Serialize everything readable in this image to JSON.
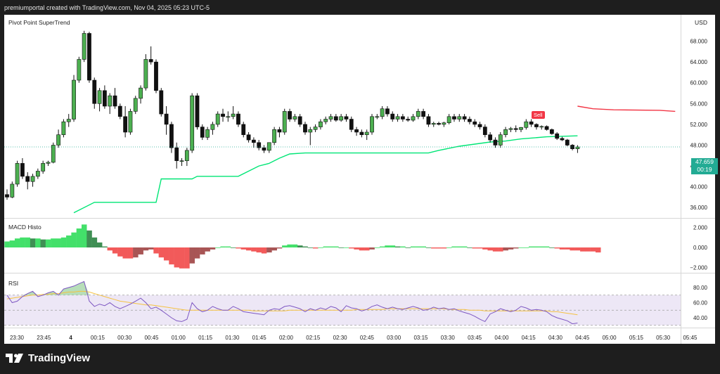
{
  "header": {
    "text": "premiumportal created with TradingView.com, Nov 04, 2025 05:23 UTC-5"
  },
  "brand": {
    "name": "TradingView"
  },
  "colors": {
    "up": "#4caf50",
    "down": "#111111",
    "supertrend_up": "#00e676",
    "supertrend_down": "#f23645",
    "hist_pos": "#4caf50",
    "hist_neg": "#f23645",
    "rsi_line": "#7e57c2",
    "rsi_ma": "#f5c242",
    "rsi_band": "#ede7f6",
    "badge": "#22ab94"
  },
  "price_badge": {
    "price": "47.659",
    "countdown": "00:19"
  },
  "sell_label": "Sell",
  "chart_data": [
    {
      "type": "candlestick",
      "title": "Pivot Point SuperTrend",
      "currency": "USD",
      "x_ticks": [
        "23:30",
        "23:45",
        "4",
        "00:15",
        "00:30",
        "00:45",
        "01:00",
        "01:15",
        "01:30",
        "01:45",
        "02:00",
        "02:15",
        "02:30",
        "02:45",
        "03:00",
        "03:15",
        "03:30",
        "03:45",
        "04:00",
        "04:15",
        "04:30",
        "04:45",
        "05:00",
        "05:15",
        "05:30",
        "05:45"
      ],
      "y_ticks": [
        "68.000",
        "64.000",
        "60.000",
        "56.000",
        "52.000",
        "48.000",
        "44.000",
        "40.000",
        "36.000"
      ],
      "ylim": [
        34,
        72
      ],
      "candles": [
        [
          38.5,
          39.5,
          37.5,
          38.0
        ],
        [
          38.0,
          41.0,
          37.8,
          40.5
        ],
        [
          40.5,
          45.0,
          40.0,
          44.5
        ],
        [
          44.5,
          45.5,
          41.5,
          42.0
        ],
        [
          42.0,
          42.8,
          39.5,
          41.0
        ],
        [
          41.0,
          42.5,
          40.0,
          42.0
        ],
        [
          42.0,
          43.5,
          41.5,
          43.0
        ],
        [
          43.0,
          45.0,
          42.5,
          44.5
        ],
        [
          44.5,
          45.0,
          44.0,
          44.7
        ],
        [
          44.7,
          48.5,
          44.5,
          48.0
        ],
        [
          48.0,
          51.0,
          47.5,
          50.0
        ],
        [
          50.0,
          53.0,
          49.5,
          52.5
        ],
        [
          52.5,
          54.0,
          51.5,
          53.0
        ],
        [
          53.0,
          61.5,
          52.5,
          60.5
        ],
        [
          60.5,
          65.0,
          60.0,
          64.5
        ],
        [
          64.5,
          70.0,
          64.0,
          69.5
        ],
        [
          69.5,
          69.8,
          60.0,
          60.5
        ],
        [
          60.5,
          61.0,
          55.0,
          56.0
        ],
        [
          56.0,
          59.0,
          54.5,
          58.5
        ],
        [
          58.5,
          59.5,
          55.0,
          55.5
        ],
        [
          55.5,
          58.0,
          54.0,
          57.5
        ],
        [
          57.5,
          59.0,
          55.0,
          55.5
        ],
        [
          55.5,
          56.0,
          53.0,
          53.5
        ],
        [
          53.5,
          55.5,
          49.5,
          50.5
        ],
        [
          50.5,
          55.0,
          50.0,
          54.5
        ],
        [
          54.5,
          57.5,
          54.0,
          57.0
        ],
        [
          57.0,
          59.5,
          56.0,
          59.0
        ],
        [
          59.0,
          65.5,
          58.5,
          64.5
        ],
        [
          64.5,
          67.0,
          63.5,
          64.0
        ],
        [
          64.0,
          64.5,
          58.0,
          58.5
        ],
        [
          58.5,
          59.0,
          53.5,
          54.0
        ],
        [
          54.0,
          55.5,
          50.0,
          52.0
        ],
        [
          52.0,
          52.5,
          46.5,
          47.5
        ],
        [
          47.5,
          48.5,
          43.5,
          45.0
        ],
        [
          45.0,
          45.5,
          44.0,
          45.0
        ],
        [
          45.0,
          47.5,
          44.0,
          47.0
        ],
        [
          47.0,
          58.0,
          46.5,
          57.5
        ],
        [
          57.5,
          58.0,
          51.0,
          51.5
        ],
        [
          51.5,
          52.0,
          49.0,
          49.5
        ],
        [
          49.5,
          51.5,
          49.0,
          51.0
        ],
        [
          51.0,
          52.5,
          50.0,
          52.0
        ],
        [
          52.0,
          54.5,
          51.5,
          54.0
        ],
        [
          54.0,
          55.0,
          52.5,
          53.5
        ],
        [
          53.5,
          54.5,
          52.5,
          53.5
        ],
        [
          53.5,
          55.5,
          53.0,
          54.0
        ],
        [
          54.0,
          54.5,
          51.5,
          52.0
        ],
        [
          52.0,
          52.5,
          49.5,
          50.0
        ],
        [
          50.0,
          50.5,
          48.5,
          49.0
        ],
        [
          49.0,
          49.5,
          47.5,
          48.5
        ],
        [
          48.5,
          49.0,
          47.0,
          47.5
        ],
        [
          47.5,
          48.0,
          46.5,
          47.0
        ],
        [
          47.0,
          48.5,
          46.5,
          48.5
        ],
        [
          48.5,
          51.5,
          48.0,
          51.0
        ],
        [
          51.0,
          51.5,
          49.5,
          50.5
        ],
        [
          50.5,
          55.0,
          50.0,
          54.5
        ],
        [
          54.5,
          55.0,
          52.5,
          53.0
        ],
        [
          53.0,
          54.0,
          52.5,
          53.5
        ],
        [
          53.5,
          54.0,
          51.5,
          52.0
        ],
        [
          52.0,
          52.5,
          50.0,
          50.5
        ],
        [
          50.5,
          51.5,
          48.0,
          51.0
        ],
        [
          51.0,
          52.0,
          50.5,
          51.5
        ],
        [
          51.5,
          53.0,
          51.0,
          52.5
        ],
        [
          52.5,
          53.5,
          52.0,
          53.0
        ],
        [
          53.0,
          54.0,
          52.5,
          53.5
        ],
        [
          53.5,
          54.0,
          52.5,
          52.8
        ],
        [
          52.8,
          54.0,
          52.5,
          53.5
        ],
        [
          53.5,
          54.0,
          52.5,
          53.0
        ],
        [
          53.0,
          53.5,
          50.5,
          51.0
        ],
        [
          51.0,
          51.5,
          49.8,
          50.5
        ],
        [
          50.5,
          51.0,
          49.5,
          50.0
        ],
        [
          50.0,
          51.0,
          49.0,
          50.5
        ],
        [
          50.5,
          54.0,
          50.0,
          53.5
        ],
        [
          53.5,
          54.0,
          53.0,
          53.5
        ],
        [
          53.5,
          55.5,
          53.0,
          55.0
        ],
        [
          55.0,
          55.5,
          53.5,
          54.0
        ],
        [
          54.0,
          54.5,
          52.5,
          53.0
        ],
        [
          53.0,
          54.0,
          52.5,
          53.5
        ],
        [
          53.5,
          54.0,
          52.5,
          53.0
        ],
        [
          53.0,
          53.5,
          52.5,
          52.8
        ],
        [
          52.8,
          54.0,
          52.5,
          53.5
        ],
        [
          53.5,
          55.0,
          53.0,
          54.5
        ],
        [
          54.5,
          55.0,
          53.0,
          53.5
        ],
        [
          53.5,
          54.0,
          51.5,
          52.0
        ],
        [
          52.0,
          52.5,
          51.5,
          52.2
        ],
        [
          52.2,
          52.5,
          51.8,
          52.0
        ],
        [
          52.0,
          52.5,
          51.5,
          52.3
        ],
        [
          52.3,
          54.0,
          52.0,
          53.5
        ],
        [
          53.5,
          54.0,
          52.5,
          53.0
        ],
        [
          53.0,
          54.0,
          52.5,
          53.5
        ],
        [
          53.5,
          54.0,
          52.5,
          53.0
        ],
        [
          53.0,
          53.5,
          52.0,
          52.5
        ],
        [
          52.5,
          53.0,
          51.5,
          52.0
        ],
        [
          52.0,
          52.5,
          51.0,
          51.5
        ],
        [
          51.5,
          52.0,
          49.5,
          50.0
        ],
        [
          50.0,
          50.5,
          48.5,
          49.0
        ],
        [
          49.0,
          49.5,
          47.5,
          48.0
        ],
        [
          48.0,
          50.5,
          47.5,
          50.0
        ],
        [
          50.0,
          51.5,
          49.5,
          51.0
        ],
        [
          51.0,
          51.5,
          50.5,
          51.2
        ],
        [
          51.2,
          51.8,
          50.5,
          51.0
        ],
        [
          51.0,
          51.5,
          50.5,
          51.4
        ],
        [
          51.4,
          53.0,
          51.0,
          52.5
        ],
        [
          52.5,
          53.0,
          51.5,
          52.0
        ],
        [
          52.0,
          52.2,
          51.0,
          51.5
        ],
        [
          51.5,
          51.8,
          51.0,
          51.6
        ],
        [
          51.6,
          51.8,
          50.8,
          51.0
        ],
        [
          51.0,
          51.2,
          50.0,
          50.2
        ],
        [
          50.2,
          50.5,
          49.0,
          49.3
        ],
        [
          49.3,
          49.6,
          48.8,
          49.0
        ],
        [
          49.0,
          49.2,
          47.8,
          48.0
        ],
        [
          48.0,
          48.2,
          47.0,
          47.3
        ],
        [
          47.3,
          48.0,
          46.5,
          47.659
        ]
      ],
      "supertrend": {
        "up": [
          [
            13,
            35
          ],
          [
            17,
            37
          ],
          [
            29,
            37
          ],
          [
            30,
            41.5
          ],
          [
            36,
            41.5
          ],
          [
            37,
            42
          ],
          [
            45,
            42
          ],
          [
            49,
            44
          ],
          [
            51,
            44.5
          ],
          [
            53,
            45.5
          ],
          [
            55,
            46.3
          ],
          [
            58,
            46.5
          ],
          [
            82,
            46.5
          ],
          [
            84,
            47
          ],
          [
            88,
            47.8
          ],
          [
            91,
            48.2
          ],
          [
            94,
            48.6
          ],
          [
            97,
            48.8
          ],
          [
            100,
            49.2
          ],
          [
            105,
            49.6
          ],
          [
            111,
            49.8
          ]
        ],
        "down": [
          [
            111,
            55.5
          ],
          [
            114,
            55.0
          ],
          [
            118,
            54.8
          ],
          [
            127,
            54.7
          ],
          [
            130,
            54.5
          ]
        ]
      }
    },
    {
      "type": "bar",
      "title": "MACD Histo",
      "y_ticks": [
        "2.000",
        "0.000",
        "−2.000"
      ],
      "ylim": [
        -2.6,
        2.6
      ],
      "values": [
        0.6,
        0.7,
        0.9,
        1.0,
        1.0,
        0.9,
        0.9,
        0.8,
        0.8,
        0.9,
        0.9,
        1.0,
        1.2,
        1.5,
        1.9,
        2.3,
        1.7,
        1.0,
        0.5,
        0.1,
        -0.3,
        -0.6,
        -0.9,
        -1.1,
        -1.1,
        -1.0,
        -0.7,
        -0.3,
        -0.2,
        -0.6,
        -1.0,
        -1.3,
        -1.7,
        -2.0,
        -2.1,
        -2.1,
        -1.6,
        -1.1,
        -0.7,
        -0.4,
        -0.2,
        0.0,
        0.1,
        0.1,
        0.0,
        -0.1,
        -0.2,
        -0.3,
        -0.4,
        -0.5,
        -0.6,
        -0.5,
        -0.3,
        -0.1,
        0.2,
        0.3,
        0.3,
        0.2,
        0.1,
        0.0,
        -0.1,
        0.0,
        0.1,
        0.1,
        0.1,
        0.0,
        0.0,
        -0.1,
        -0.2,
        -0.3,
        -0.3,
        -0.2,
        0.0,
        0.1,
        0.2,
        0.2,
        0.1,
        0.1,
        0.0,
        0.1,
        0.1,
        0.1,
        0.0,
        -0.1,
        -0.1,
        -0.1,
        0.0,
        0.1,
        0.1,
        0.1,
        0.0,
        -0.1,
        -0.1,
        -0.2,
        -0.3,
        -0.4,
        -0.4,
        -0.3,
        -0.2,
        -0.1,
        0.0,
        0.0,
        0.1,
        0.1,
        0.1,
        0.1,
        0.0,
        -0.1,
        -0.2,
        -0.2,
        -0.3,
        -0.3,
        -0.4,
        -0.4,
        -0.4,
        -0.5
      ]
    },
    {
      "type": "line",
      "title": "RSI",
      "y_ticks": [
        "80.00",
        "60.00",
        "40.00"
      ],
      "ylim": [
        27,
        92
      ],
      "band": [
        30,
        70
      ],
      "rsi": [
        70,
        60,
        62,
        68,
        72,
        75,
        68,
        70,
        73,
        75,
        70,
        78,
        80,
        82,
        85,
        88,
        62,
        55,
        58,
        56,
        60,
        55,
        52,
        55,
        58,
        62,
        66,
        60,
        52,
        54,
        50,
        45,
        40,
        36,
        35,
        38,
        60,
        52,
        48,
        50,
        55,
        52,
        50,
        50,
        55,
        52,
        48,
        47,
        46,
        45,
        44,
        50,
        52,
        51,
        55,
        56,
        54,
        52,
        48,
        52,
        50,
        53,
        51,
        55,
        53,
        48,
        56,
        53,
        52,
        49,
        51,
        55,
        57,
        54,
        52,
        54,
        52,
        51,
        53,
        55,
        53,
        50,
        51,
        54,
        52,
        53,
        51,
        52,
        49,
        47,
        45,
        42,
        38,
        35,
        45,
        48,
        52,
        50,
        48,
        50,
        55,
        53,
        50,
        51,
        50,
        48,
        43,
        40,
        38,
        36,
        32,
        33
      ],
      "ma": [
        65,
        66,
        67,
        68,
        69,
        70,
        70,
        71,
        71,
        72,
        72,
        73,
        74,
        74,
        75,
        75,
        74,
        72,
        70,
        68,
        66,
        64,
        62,
        61,
        60,
        59,
        58,
        57,
        57,
        56,
        55,
        54,
        53,
        52,
        51,
        50,
        50,
        50,
        50,
        50,
        50,
        50,
        50,
        50,
        50,
        50,
        50,
        50,
        49,
        49,
        49,
        49,
        49,
        49,
        49,
        50,
        50,
        50,
        50,
        50,
        50,
        50,
        50,
        50,
        50,
        50,
        50,
        50,
        51,
        51,
        51,
        51,
        51,
        51,
        52,
        52,
        52,
        52,
        52,
        52,
        52,
        52,
        52,
        52,
        52,
        52,
        51,
        51,
        51,
        51,
        50,
        50,
        50,
        49,
        49,
        49,
        49,
        49,
        49,
        49,
        49,
        49,
        49,
        49,
        49,
        49,
        48,
        48,
        47,
        46,
        45,
        44
      ]
    }
  ]
}
